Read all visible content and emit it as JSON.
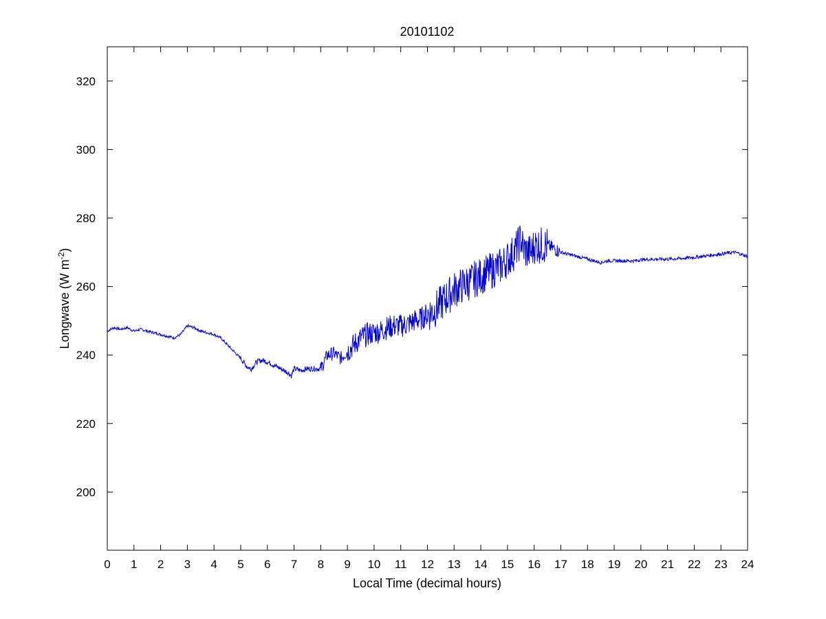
{
  "chart_data": {
    "type": "line",
    "title": "20101102",
    "xlabel": "Local Time (decimal hours)",
    "ylabel_main": "Longwave (W m",
    "ylabel_exp": "-2",
    "ylabel_close": ")",
    "xlim": [
      0,
      24
    ],
    "ylim": [
      183,
      330
    ],
    "xticks": [
      0,
      1,
      2,
      3,
      4,
      5,
      6,
      7,
      8,
      9,
      10,
      11,
      12,
      13,
      14,
      15,
      16,
      17,
      18,
      19,
      20,
      21,
      22,
      23,
      24
    ],
    "yticks": [
      200,
      220,
      240,
      260,
      280,
      300,
      320
    ],
    "grid": false,
    "line_color": "#0000cc",
    "series": [
      {
        "x": [
          0,
          0.25,
          0.5,
          0.75,
          1,
          1.25,
          1.5,
          1.75,
          2,
          2.25,
          2.5,
          2.75,
          3,
          3.25,
          3.5,
          3.75,
          4,
          4.25,
          4.5,
          4.75,
          5,
          5.25,
          5.4,
          5.6,
          5.8,
          6,
          6.25,
          6.5,
          6.75,
          6.9,
          7,
          7.25,
          7.5,
          7.75,
          8,
          8.25,
          8.5,
          8.75,
          9,
          9.25,
          9.5,
          9.75,
          10,
          10.25,
          10.5,
          10.75,
          11,
          11.25,
          11.5,
          11.75,
          12,
          12.25,
          12.5,
          12.75,
          13,
          13.25,
          13.5,
          13.75,
          14,
          14.25,
          14.5,
          14.75,
          15,
          15.25,
          15.4,
          15.5,
          15.6,
          15.75,
          15.9,
          16,
          16.25,
          16.5,
          16.75,
          17,
          17.25,
          17.5,
          17.75,
          18,
          18.25,
          18.5,
          18.75,
          19,
          19.25,
          19.5,
          19.75,
          20,
          20.5,
          21,
          21.5,
          22,
          22.5,
          23,
          23.5,
          23.75,
          23.9,
          24
        ],
        "y": [
          247,
          248,
          247.5,
          248,
          247,
          247.5,
          247,
          246.5,
          246,
          245.5,
          245,
          246,
          248.5,
          248,
          247,
          246.5,
          246,
          245,
          243,
          241,
          239,
          236.5,
          236,
          238,
          238.5,
          238,
          237,
          236,
          235,
          234,
          236,
          235.5,
          236,
          236,
          236,
          240,
          240.5,
          239,
          241,
          243,
          245,
          246,
          246.5,
          247,
          248,
          248.5,
          248.5,
          249,
          250,
          250.5,
          252,
          253,
          255,
          257,
          259,
          260,
          261,
          262,
          263,
          264,
          265,
          266,
          268,
          270,
          272,
          274,
          271,
          270,
          270,
          272,
          272,
          272,
          271,
          270,
          269.5,
          269,
          268.5,
          268,
          267.5,
          267,
          267.5,
          267.5,
          267.5,
          267.5,
          267.5,
          267.8,
          268,
          268,
          268.2,
          268.5,
          269,
          269.5,
          270,
          269.5,
          269,
          269
        ]
      }
    ]
  }
}
